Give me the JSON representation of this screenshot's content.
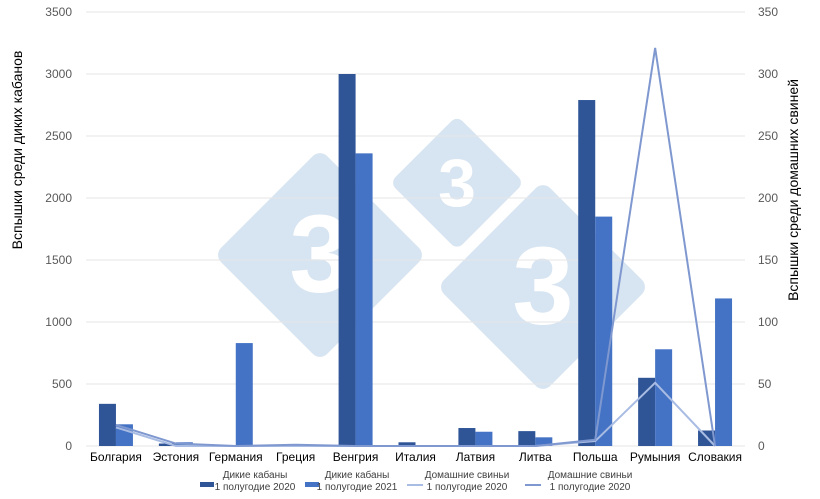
{
  "chart_data": {
    "type": "bar",
    "categories": [
      "Болгария",
      "Эстония",
      "Германия",
      "Греция",
      "Венгрия",
      "Италия",
      "Латвия",
      "Литва",
      "Польша",
      "Румыния",
      "Словакия"
    ],
    "series": [
      {
        "name": "Дикие кабаны 1 полугодие 2020",
        "type": "bar",
        "axis": "left",
        "color": "#2f5597",
        "values": [
          340,
          20,
          0,
          0,
          3000,
          30,
          145,
          120,
          2790,
          550,
          125
        ]
      },
      {
        "name": "Дикие кабаны 1 полугодие 2021",
        "type": "bar",
        "axis": "left",
        "color": "#4472c4",
        "values": [
          175,
          30,
          830,
          0,
          2360,
          0,
          115,
          70,
          1850,
          780,
          1190
        ]
      },
      {
        "name": "Домашние свиньи 1 полугодие 2020",
        "type": "line",
        "axis": "right",
        "color": "#a9bce3",
        "values": [
          15,
          0,
          0,
          0,
          0,
          0,
          0,
          0,
          4,
          51,
          0
        ]
      },
      {
        "name": "Домашние свиньи 1 полугодие 2020",
        "type": "line",
        "axis": "right",
        "color": "#7f98cf",
        "values": [
          17,
          2,
          0,
          1,
          0,
          0,
          0,
          0,
          5,
          321,
          0
        ]
      }
    ],
    "ylabel": "Вспышки среди диких кабанов",
    "y2label": "Вспышки среди домашних свиней",
    "ylim": [
      0,
      3500
    ],
    "y2lim": [
      0,
      350
    ],
    "yticks": [
      "0",
      "500",
      "1000",
      "1500",
      "2000",
      "2500",
      "3000",
      "3500"
    ],
    "y2ticks": [
      "0",
      "50",
      "100",
      "150",
      "200",
      "250",
      "300",
      "350"
    ],
    "grid": true,
    "legend": "bottom"
  },
  "watermark": "333"
}
